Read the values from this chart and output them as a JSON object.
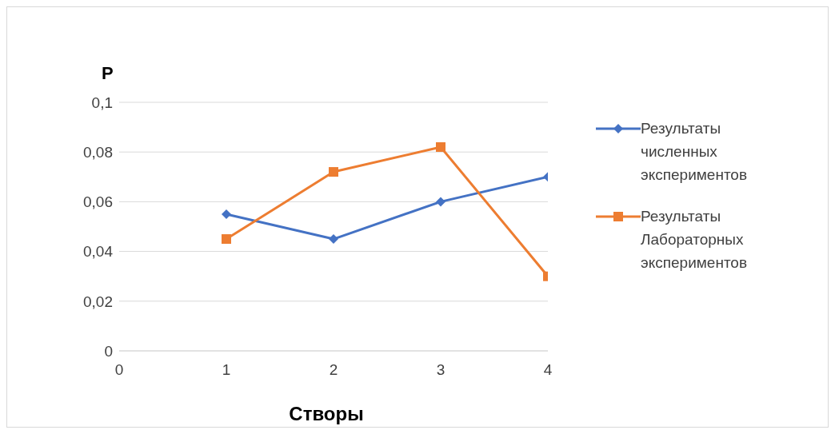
{
  "chart_data": {
    "type": "line",
    "ylabel": "P",
    "xlabel": "Створы",
    "x": [
      1,
      2,
      3,
      4
    ],
    "series": [
      {
        "name": "Результаты численных экспериментов",
        "color": "#4472c4",
        "marker": "diamond",
        "values": [
          0.055,
          0.045,
          0.06,
          0.07
        ]
      },
      {
        "name": "Результаты Лабораторных экспериментов",
        "color": "#ed7d31",
        "marker": "square",
        "values": [
          0.045,
          0.072,
          0.082,
          0.03
        ]
      }
    ],
    "xlim": [
      0,
      4
    ],
    "xticks": [
      0,
      1,
      2,
      3,
      4
    ],
    "ylim": [
      0,
      0.1
    ],
    "yticks": [
      {
        "value": 0,
        "label": "0"
      },
      {
        "value": 0.02,
        "label": "0,02"
      },
      {
        "value": 0.04,
        "label": "0,04"
      },
      {
        "value": 0.06,
        "label": "0,06"
      },
      {
        "value": 0.08,
        "label": "0,08"
      },
      {
        "value": 0.1,
        "label": "0,1"
      }
    ],
    "grid": "y",
    "legend": "right"
  }
}
